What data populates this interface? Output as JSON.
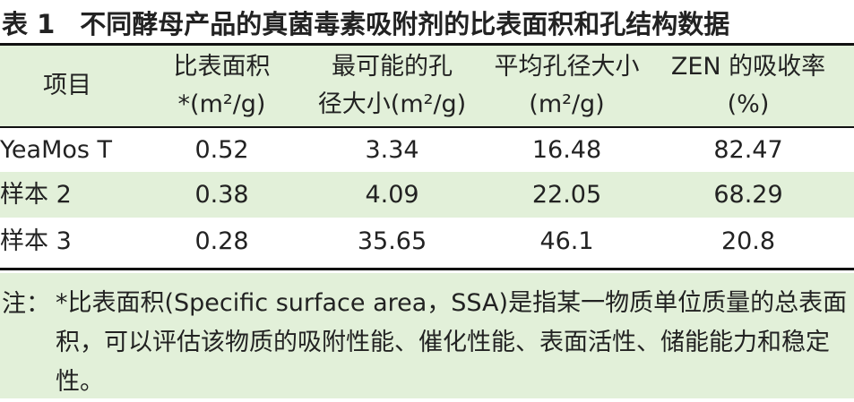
{
  "title": {
    "label": "表 1",
    "text": "不同酵母产品的真菌毒素吸附剂的比表面积和孔结构数据"
  },
  "table": {
    "header": [
      [
        "项目"
      ],
      [
        "比表面积",
        "*(m²/g)"
      ],
      [
        "最可能的孔",
        "径大小(m²/g)"
      ],
      [
        "平均孔径大小",
        "(m²/g)"
      ],
      [
        "ZEN 的吸收率",
        "(%)"
      ]
    ],
    "rows": [
      [
        "YeaMos T",
        0.52,
        3.34,
        16.48,
        82.47
      ],
      [
        "样本 2",
        0.38,
        4.09,
        22.05,
        68.29
      ],
      [
        "样本 3",
        0.28,
        35.65,
        46.1,
        20.8
      ]
    ]
  },
  "note": {
    "label": "注：",
    "text": "*比表面积(Specific surface area，SSA)是指某一物质单位质量的总表面积，可以评估该物质的吸附性能、催化性能、表面活性、储能能力和稳定性。"
  }
}
